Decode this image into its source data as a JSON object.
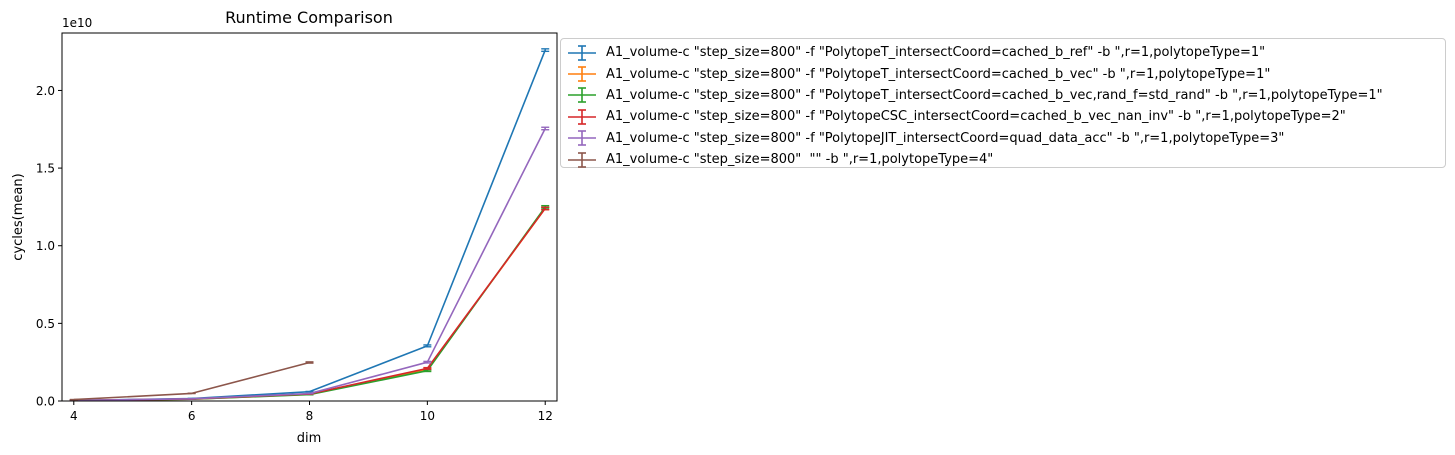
{
  "chart_data": {
    "type": "line",
    "title": "Runtime Comparison",
    "xlabel": "dim",
    "ylabel": "cycles(mean)",
    "y_scale_label": "1e10",
    "xlim": [
      3.8,
      12.2
    ],
    "ylim": [
      0,
      23700000000.0
    ],
    "x_ticks": [
      4,
      6,
      8,
      10,
      12
    ],
    "x_tick_labels": [
      "4",
      "6",
      "8",
      "10",
      "12"
    ],
    "y_ticks": [
      0,
      5000000000.0,
      10000000000.0,
      15000000000.0,
      20000000000.0
    ],
    "y_tick_labels": [
      "0.0",
      "0.5",
      "1.0",
      "1.5",
      "2.0"
    ],
    "grid": false,
    "legend_position": "outside-right",
    "error_bars": true,
    "series": [
      {
        "name": "A1_volume-c \"step_size=800\" -f \"PolytopeT_intersectCoord=cached_b_ref\" -b \",r=1,polytopeType=1\"",
        "color": "#1f77b4",
        "x": [
          4,
          6,
          8,
          10,
          12
        ],
        "y": [
          40000000.0,
          160000000.0,
          600000000.0,
          3550000000.0,
          22600000000.0
        ],
        "err": [
          2000000.0,
          5000000.0,
          15000000.0,
          60000000.0,
          80000000.0
        ]
      },
      {
        "name": "A1_volume-c \"step_size=800\" -f \"PolytopeT_intersectCoord=cached_b_vec\" -b \",r=1,polytopeType=1\"",
        "color": "#ff7f0e",
        "x": [
          4,
          6,
          8,
          10,
          12
        ],
        "y": [
          30000000.0,
          120000000.0,
          430000000.0,
          2050000000.0,
          12400000000.0
        ],
        "err": [
          2000000.0,
          4000000.0,
          10000000.0,
          50000000.0,
          80000000.0
        ]
      },
      {
        "name": "A1_volume-c \"step_size=800\" -f \"PolytopeT_intersectCoord=cached_b_vec,rand_f=std_rand\" -b \",r=1,polytopeType=1\"",
        "color": "#2ca02c",
        "x": [
          4,
          6,
          8,
          10,
          12
        ],
        "y": [
          30000000.0,
          115000000.0,
          410000000.0,
          1950000000.0,
          12500000000.0
        ],
        "err": [
          2000000.0,
          4000000.0,
          10000000.0,
          50000000.0,
          80000000.0
        ]
      },
      {
        "name": "A1_volume-c \"step_size=800\" -f \"PolytopeCSC_intersectCoord=cached_b_vec_nan_inv\" -b \",r=1,polytopeType=2\"",
        "color": "#d62728",
        "x": [
          4,
          6,
          8,
          10,
          12
        ],
        "y": [
          35000000.0,
          130000000.0,
          450000000.0,
          2100000000.0,
          12400000000.0
        ],
        "err": [
          2000000.0,
          4000000.0,
          10000000.0,
          50000000.0,
          80000000.0
        ]
      },
      {
        "name": "A1_volume-c \"step_size=800\" -f \"PolytopeJIT_intersectCoord=quad_data_acc\" -b \",r=1,polytopeType=3\"",
        "color": "#9467bd",
        "x": [
          4,
          6,
          8,
          10,
          12
        ],
        "y": [
          35000000.0,
          140000000.0,
          480000000.0,
          2500000000.0,
          17550000000.0
        ],
        "err": [
          2000000.0,
          4000000.0,
          10000000.0,
          50000000.0,
          80000000.0
        ]
      },
      {
        "name": "A1_volume-c \"step_size=800\"  \"\" -b \",r=1,polytopeType=4\"",
        "color": "#8c564b",
        "x": [
          4,
          6,
          8
        ],
        "y": [
          90000000.0,
          490000000.0,
          2480000000.0
        ],
        "err": [
          3000000.0,
          10000000.0,
          40000000.0
        ]
      }
    ]
  }
}
